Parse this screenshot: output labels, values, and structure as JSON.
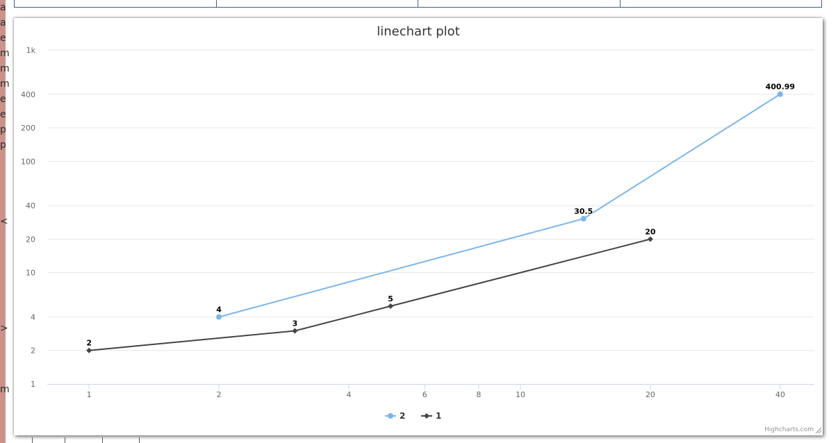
{
  "background_page": {
    "left_fragment_chars": [
      "a",
      "a",
      "e",
      "m",
      "m",
      "m",
      "e",
      "e",
      "p",
      "p",
      "",
      "",
      "",
      "",
      "<",
      "",
      "",
      "",
      "",
      "",
      "",
      ">",
      "",
      "",
      "",
      "m"
    ]
  },
  "chart_data": {
    "type": "line",
    "title": "linechart plot",
    "xlabel": "",
    "ylabel": "",
    "x_scale": "log",
    "y_scale": "log",
    "xlim": [
      0.8,
      48
    ],
    "ylim": [
      1,
      1000
    ],
    "x_ticks": [
      1,
      2,
      4,
      6,
      8,
      10,
      20,
      40
    ],
    "x_tick_labels": [
      "1",
      "2",
      "4",
      "6",
      "8",
      "10",
      "20",
      "40"
    ],
    "y_ticks": [
      1,
      2,
      4,
      10,
      20,
      40,
      100,
      200,
      400,
      1000
    ],
    "y_tick_labels": [
      "1",
      "2",
      "4",
      "10",
      "20",
      "40",
      "100",
      "200",
      "400",
      "1k"
    ],
    "grid": true,
    "legend_position": "bottom-center",
    "series": [
      {
        "name": "2",
        "color": "#7cb5ec",
        "marker": "circle",
        "points": [
          [
            2,
            4
          ],
          [
            14,
            30.5
          ],
          [
            40,
            400.99
          ]
        ],
        "data_labels": [
          "4",
          "30.5",
          "400.99"
        ]
      },
      {
        "name": "1",
        "color": "#434348",
        "marker": "diamond",
        "points": [
          [
            1,
            2
          ],
          [
            3,
            3
          ],
          [
            5,
            5
          ],
          [
            20,
            20
          ]
        ],
        "data_labels": [
          "2",
          "3",
          "5",
          "20"
        ]
      }
    ],
    "credits": "Highcharts.com"
  }
}
